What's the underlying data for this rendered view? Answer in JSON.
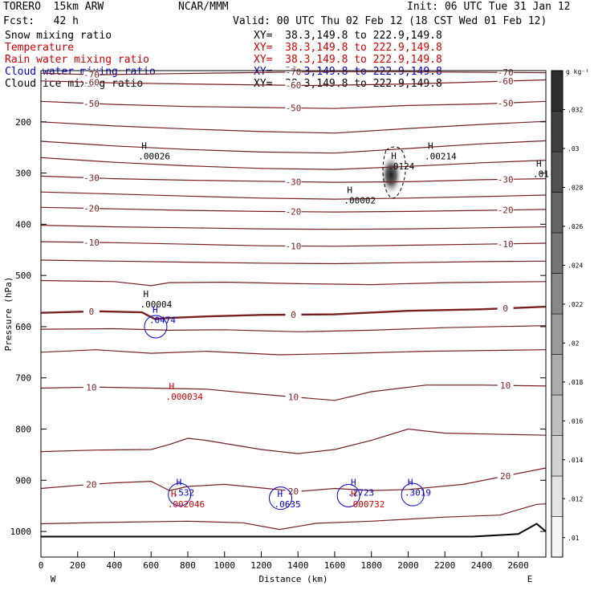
{
  "header": {
    "model": "TORERO  15km ARW",
    "org": "NCAR/MMM",
    "init": "Init: 06 UTC Tue 31 Jan 12",
    "fcst": "Fcst:   42 h",
    "valid": "Valid: 00 UTC Thu 02 Feb 12 (18 CST Wed 01 Feb 12)"
  },
  "fields": [
    {
      "name": "Snow mixing ratio",
      "xy": "XY=  38.3,149.8 to 222.9,149.8",
      "color": "#000000"
    },
    {
      "name": "Temperature",
      "xy": "XY=  38.3,149.8 to 222.9,149.8",
      "color": "#cc0000"
    },
    {
      "name": "Rain water mixing ratio",
      "xy": "XY=  38.3,149.8 to 222.9,149.8",
      "color": "#cc0000"
    },
    {
      "name": "Cloud water mixing ratio",
      "xy": "XY=  38.3,149.8 to 222.9,149.8",
      "color": "#0000cc"
    },
    {
      "name": "Cloud ice mixing ratio",
      "xy": "XY=  38.3,149.8 to 222.9,149.8",
      "color": "#000000"
    }
  ],
  "chart_data": {
    "type": "contour",
    "xlabel": "Distance (km)",
    "ylabel": "Pressure (hPa)",
    "xlim": [
      0,
      2750
    ],
    "ylim": [
      100,
      1050
    ],
    "xticks": [
      0,
      200,
      400,
      600,
      800,
      1000,
      1200,
      1400,
      1600,
      1800,
      2000,
      2200,
      2400,
      2600
    ],
    "yticks": [
      200,
      300,
      400,
      500,
      600,
      700,
      800,
      900,
      1000
    ],
    "x_end_labels": {
      "west": "W",
      "east": "E"
    },
    "colorbar": {
      "unit": "g kg⁻¹",
      "ticks": [
        ".01",
        ".012",
        ".014",
        ".016",
        ".018",
        ".02",
        ".022",
        ".024",
        ".026",
        ".028",
        ".03",
        ".032"
      ],
      "values": [
        0.01,
        0.012,
        0.014,
        0.016,
        0.018,
        0.02,
        0.022,
        0.024,
        0.026,
        0.028,
        0.03,
        0.032
      ],
      "range": [
        0.009,
        0.034
      ]
    },
    "temperature_contours": [
      {
        "label": "-70",
        "points": [
          [
            0,
            105
          ],
          [
            300,
            108
          ],
          [
            700,
            106
          ],
          [
            1100,
            104
          ],
          [
            1500,
            102
          ],
          [
            1900,
            102
          ],
          [
            2300,
            103
          ],
          [
            2750,
            104
          ]
        ]
      },
      {
        "label": "-60",
        "points": [
          [
            0,
            120
          ],
          [
            400,
            124
          ],
          [
            800,
            126
          ],
          [
            1200,
            128
          ],
          [
            1500,
            129
          ],
          [
            2000,
            126
          ],
          [
            2400,
            122
          ],
          [
            2750,
            118
          ]
        ]
      },
      {
        "label": "-50",
        "points": [
          [
            0,
            160
          ],
          [
            400,
            166
          ],
          [
            800,
            170
          ],
          [
            1200,
            172
          ],
          [
            1600,
            174
          ],
          [
            2000,
            168
          ],
          [
            2400,
            165
          ],
          [
            2750,
            160
          ]
        ]
      },
      {
        "label": "",
        "points": [
          [
            0,
            200
          ],
          [
            400,
            208
          ],
          [
            800,
            214
          ],
          [
            1200,
            219
          ],
          [
            1600,
            222
          ],
          [
            2000,
            213
          ],
          [
            2400,
            205
          ],
          [
            2750,
            199
          ]
        ]
      },
      {
        "label": "",
        "points": [
          [
            0,
            238
          ],
          [
            400,
            247
          ],
          [
            800,
            254
          ],
          [
            1200,
            259
          ],
          [
            1600,
            261
          ],
          [
            2000,
            252
          ],
          [
            2400,
            243
          ],
          [
            2750,
            237
          ]
        ]
      },
      {
        "label": "",
        "points": [
          [
            0,
            270
          ],
          [
            400,
            279
          ],
          [
            800,
            286
          ],
          [
            1200,
            291
          ],
          [
            1600,
            293
          ],
          [
            2000,
            287
          ],
          [
            2400,
            280
          ],
          [
            2750,
            275
          ]
        ]
      },
      {
        "label": "-30",
        "points": [
          [
            0,
            306
          ],
          [
            400,
            311
          ],
          [
            800,
            314
          ],
          [
            1200,
            316
          ],
          [
            1600,
            318
          ],
          [
            2000,
            317
          ],
          [
            2400,
            313
          ],
          [
            2750,
            311
          ]
        ]
      },
      {
        "label": "",
        "points": [
          [
            0,
            337
          ],
          [
            400,
            341
          ],
          [
            800,
            345
          ],
          [
            1200,
            349
          ],
          [
            1600,
            351
          ],
          [
            2000,
            349
          ],
          [
            2400,
            346
          ],
          [
            2750,
            343
          ]
        ]
      },
      {
        "label": "-20",
        "points": [
          [
            0,
            367
          ],
          [
            400,
            370
          ],
          [
            800,
            373
          ],
          [
            1200,
            375
          ],
          [
            1600,
            376
          ],
          [
            2000,
            375
          ],
          [
            2400,
            373
          ],
          [
            2750,
            371
          ]
        ]
      },
      {
        "label": "",
        "points": [
          [
            0,
            402
          ],
          [
            400,
            405
          ],
          [
            800,
            407
          ],
          [
            1200,
            409
          ],
          [
            1600,
            410
          ],
          [
            2000,
            409
          ],
          [
            2400,
            407
          ],
          [
            2750,
            405
          ]
        ]
      },
      {
        "label": "-10",
        "points": [
          [
            0,
            434
          ],
          [
            400,
            436
          ],
          [
            800,
            439
          ],
          [
            1200,
            442
          ],
          [
            1600,
            443
          ],
          [
            2000,
            441
          ],
          [
            2400,
            439
          ],
          [
            2750,
            437
          ]
        ]
      },
      {
        "label": "",
        "points": [
          [
            0,
            470
          ],
          [
            400,
            472
          ],
          [
            800,
            474
          ],
          [
            1200,
            476
          ],
          [
            1600,
            477
          ],
          [
            2000,
            475
          ],
          [
            2400,
            473
          ],
          [
            2750,
            472
          ]
        ]
      },
      {
        "label": "",
        "points": [
          [
            0,
            510
          ],
          [
            400,
            512
          ],
          [
            600,
            520
          ],
          [
            700,
            514
          ],
          [
            1000,
            513
          ],
          [
            1400,
            516
          ],
          [
            1800,
            518
          ],
          [
            2200,
            514
          ],
          [
            2750,
            512
          ]
        ]
      },
      {
        "label": "0",
        "points": [
          [
            0,
            573
          ],
          [
            300,
            570
          ],
          [
            550,
            572
          ],
          [
            620,
            585
          ],
          [
            700,
            583
          ],
          [
            900,
            580
          ],
          [
            1200,
            577
          ],
          [
            1600,
            576
          ],
          [
            2000,
            569
          ],
          [
            2400,
            566
          ],
          [
            2750,
            561
          ]
        ]
      },
      {
        "label": "",
        "points": [
          [
            0,
            605
          ],
          [
            400,
            604
          ],
          [
            700,
            607
          ],
          [
            1000,
            606
          ],
          [
            1400,
            610
          ],
          [
            1800,
            607
          ],
          [
            2200,
            602
          ],
          [
            2750,
            598
          ]
        ]
      },
      {
        "label": "",
        "points": [
          [
            0,
            650
          ],
          [
            300,
            645
          ],
          [
            600,
            652
          ],
          [
            900,
            648
          ],
          [
            1300,
            655
          ],
          [
            1700,
            652
          ],
          [
            2100,
            648
          ],
          [
            2750,
            645
          ]
        ]
      },
      {
        "label": "10",
        "points": [
          [
            0,
            720
          ],
          [
            300,
            718
          ],
          [
            600,
            720
          ],
          [
            900,
            722
          ],
          [
            1200,
            732
          ],
          [
            1400,
            738
          ],
          [
            1600,
            744
          ],
          [
            1800,
            727
          ],
          [
            2100,
            714
          ],
          [
            2400,
            714
          ],
          [
            2750,
            716
          ]
        ]
      },
      {
        "label": "",
        "points": [
          [
            0,
            844
          ],
          [
            300,
            841
          ],
          [
            600,
            840
          ],
          [
            700,
            830
          ],
          [
            800,
            818
          ],
          [
            900,
            822
          ],
          [
            1200,
            840
          ],
          [
            1400,
            848
          ],
          [
            1600,
            840
          ],
          [
            1800,
            822
          ],
          [
            2000,
            800
          ],
          [
            2200,
            808
          ],
          [
            2750,
            812
          ]
        ]
      },
      {
        "label": "20",
        "points": [
          [
            0,
            916
          ],
          [
            200,
            910
          ],
          [
            400,
            905
          ],
          [
            600,
            902
          ],
          [
            700,
            920
          ],
          [
            800,
            912
          ],
          [
            1000,
            908
          ],
          [
            1200,
            915
          ],
          [
            1400,
            922
          ],
          [
            1600,
            916
          ],
          [
            1800,
            920
          ],
          [
            2000,
            918
          ],
          [
            2300,
            908
          ],
          [
            2750,
            876
          ]
        ]
      },
      {
        "label": "",
        "points": [
          [
            0,
            985
          ],
          [
            400,
            982
          ],
          [
            800,
            980
          ],
          [
            1100,
            983
          ],
          [
            1300,
            996
          ],
          [
            1500,
            984
          ],
          [
            1800,
            980
          ],
          [
            2200,
            972
          ],
          [
            2500,
            968
          ],
          [
            2700,
            947
          ],
          [
            2750,
            946
          ]
        ]
      }
    ],
    "snow_maxima": [
      {
        "label": ".00026",
        "x": 530,
        "p": 265
      },
      {
        "label": ".00002",
        "x": 1650,
        "p": 352
      },
      {
        "label": ".00214",
        "x": 2090,
        "p": 265
      },
      {
        "label": ".01",
        "x": 2680,
        "p": 300
      },
      {
        "label": ".00004",
        "x": 540,
        "p": 555
      }
    ],
    "cloud_ice_maxima": [
      {
        "label": ".0124",
        "x": 1890,
        "p": 285
      }
    ],
    "cloud_water_maxima": [
      {
        "label": ".0474",
        "x": 590,
        "p": 585
      },
      {
        "label": ".532",
        "x": 720,
        "p": 922
      },
      {
        "label": ".0635",
        "x": 1270,
        "p": 945
      },
      {
        "label": ".2723",
        "x": 1670,
        "p": 922
      },
      {
        "label": ".3019",
        "x": 1980,
        "p": 922
      }
    ],
    "rain_maxima": [
      {
        "label": ".000034",
        "x": 680,
        "p": 735
      },
      {
        "label": ".002046",
        "x": 690,
        "p": 945
      },
      {
        "label": ".000732",
        "x": 1670,
        "p": 945
      }
    ],
    "terrain": [
      [
        0,
        1010
      ],
      [
        2350,
        1010
      ],
      [
        2600,
        1005
      ],
      [
        2700,
        985
      ],
      [
        2750,
        1000
      ]
    ]
  }
}
